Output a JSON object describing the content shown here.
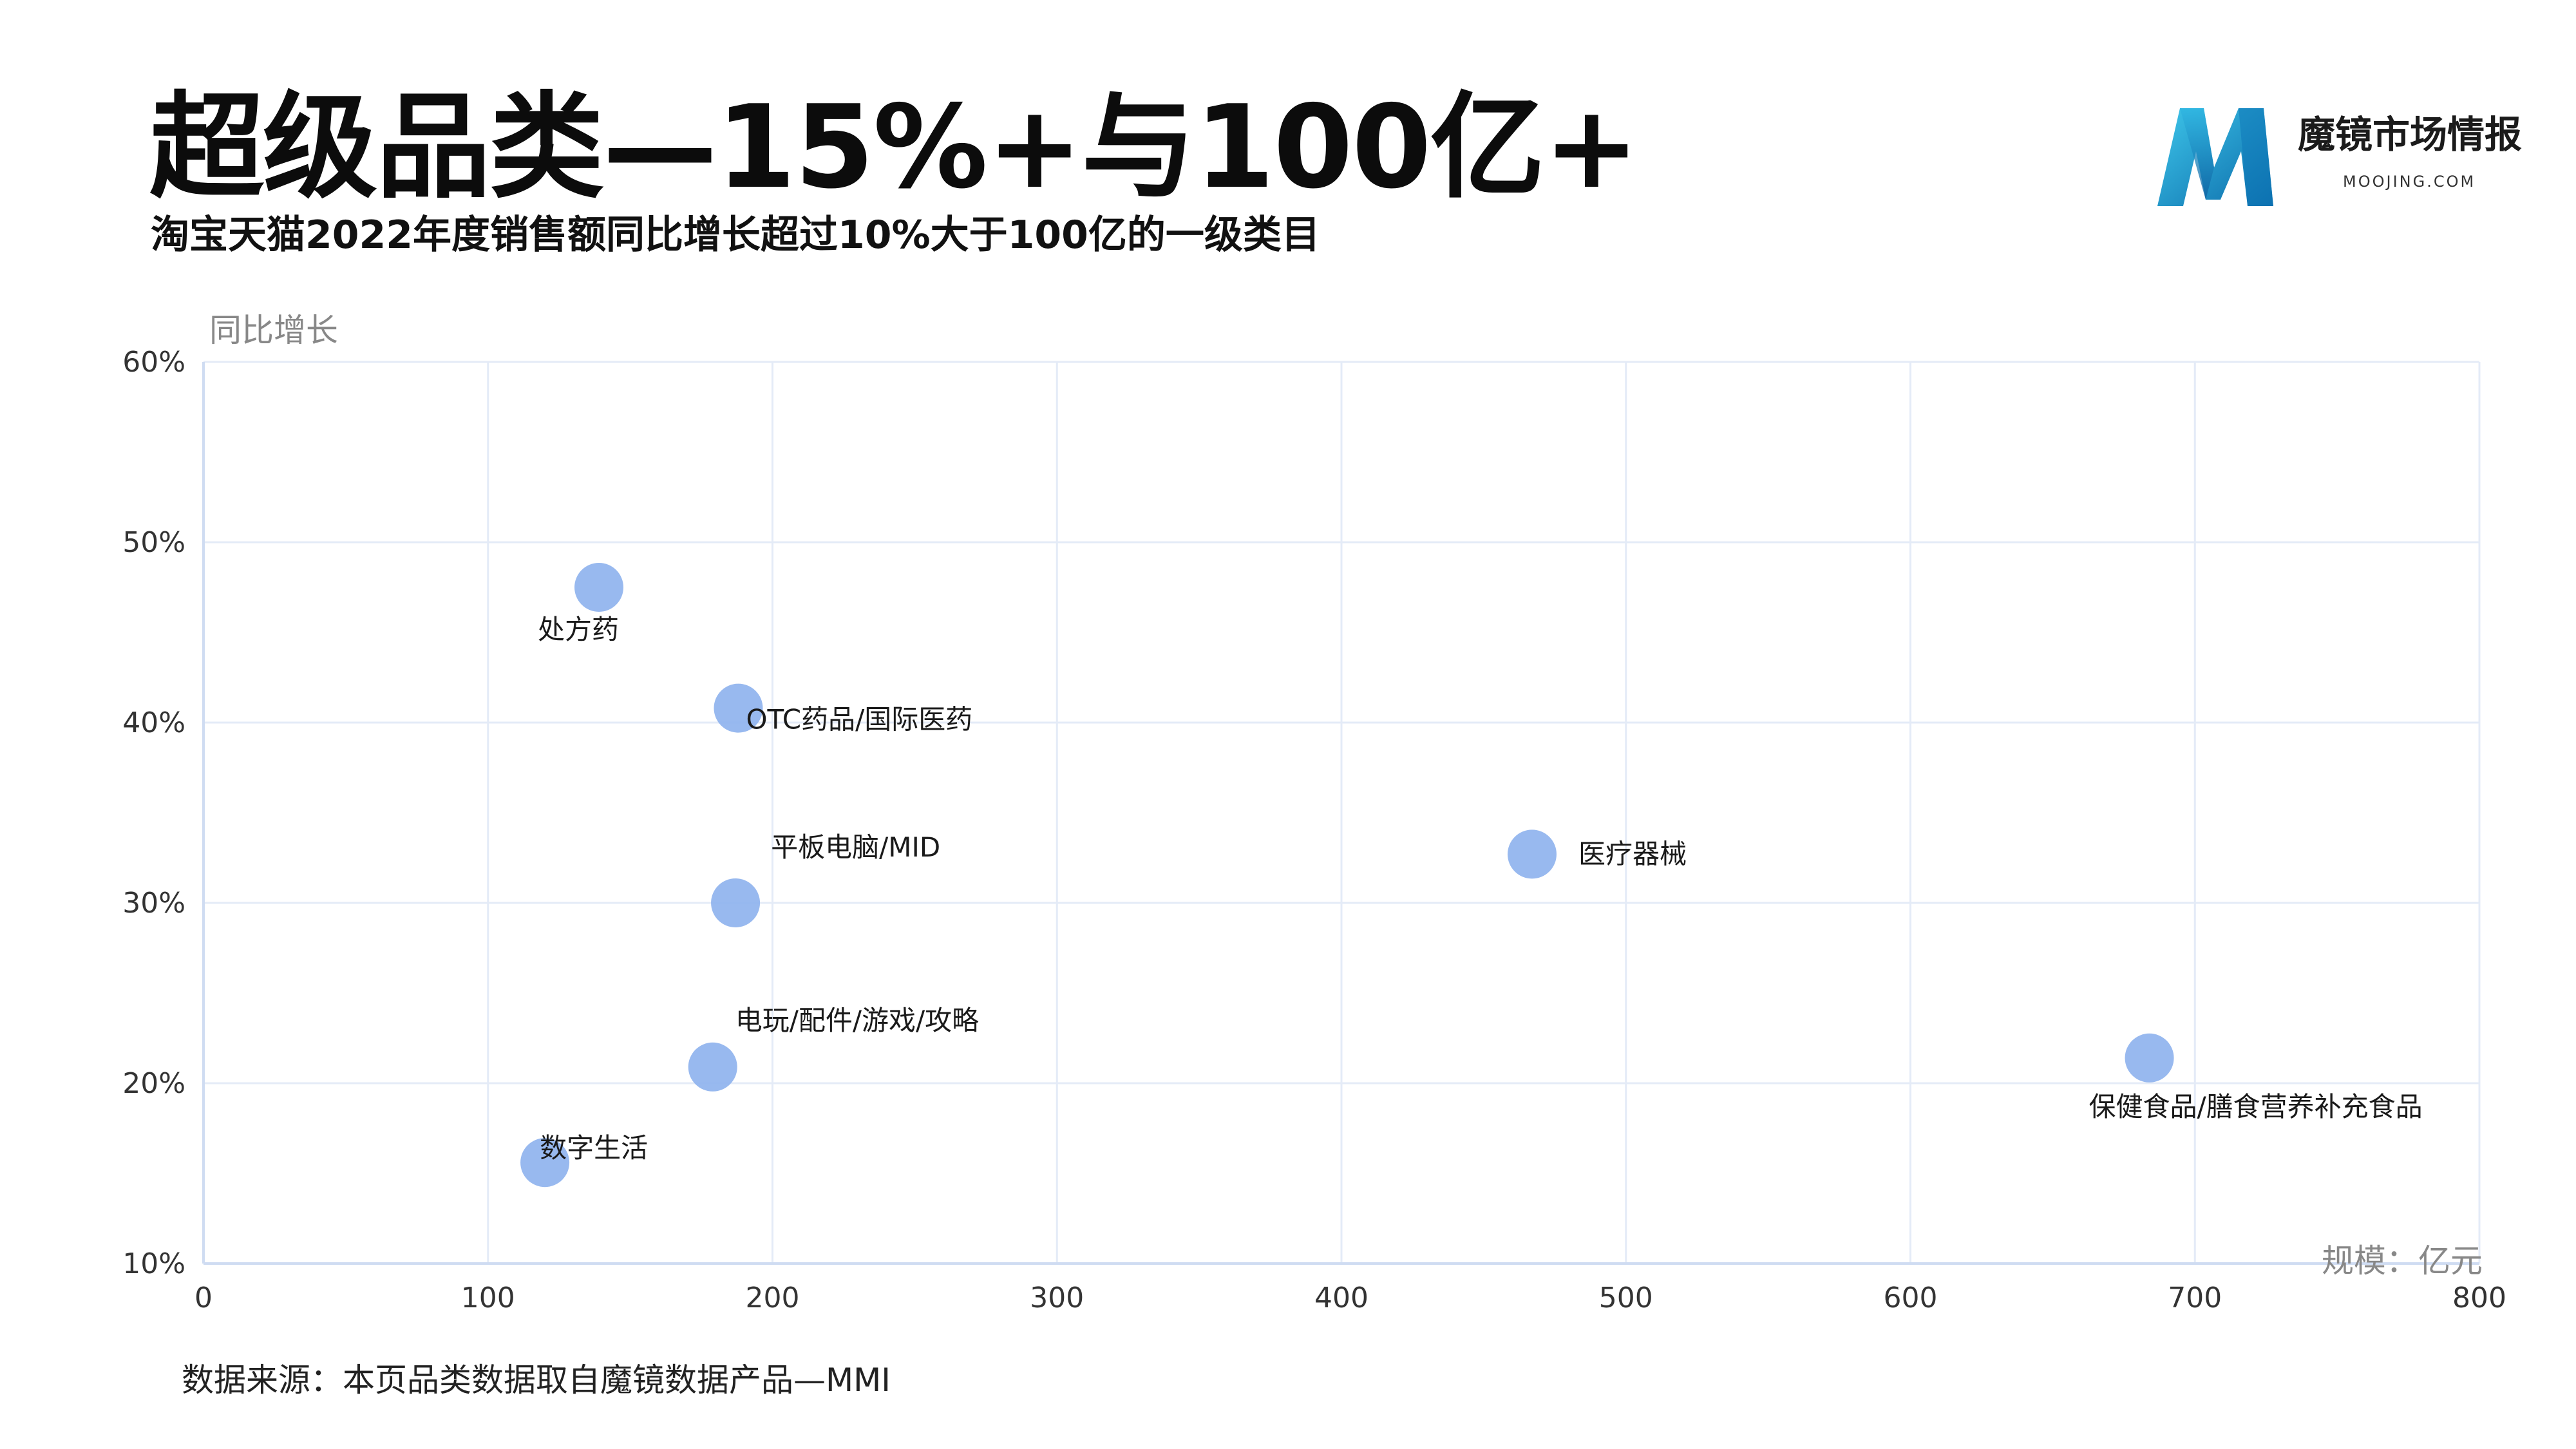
{
  "header": {
    "title": "超级品类—15%+与100亿+",
    "subtitle": "淘宝天猫2022年度销售额同比增长超过10%大于100亿的一级类目"
  },
  "logo": {
    "name": "魔镜市场情报",
    "domain": "MOOJING.COM",
    "colors": [
      "#1aa3d6",
      "#0d6fb3",
      "#37c3e6"
    ]
  },
  "footer": {
    "source": "数据来源：本页品类数据取自魔镜数据产品—MMI"
  },
  "colors": {
    "bubble": "#8fb3ee",
    "grid": "#e4ebf7",
    "axis_text": "#333333",
    "axis_title": "#888888"
  },
  "chart_data": {
    "type": "scatter",
    "xlabel": "规模：亿元",
    "ylabel": "同比增长",
    "xlim": [
      0,
      800
    ],
    "ylim": [
      0.1,
      0.6
    ],
    "x_ticks": [
      "0",
      "100",
      "200",
      "300",
      "400",
      "500",
      "600",
      "700",
      "800"
    ],
    "y_ticks": [
      "10%",
      "20%",
      "30%",
      "40%",
      "50%",
      "60%"
    ],
    "grid": true,
    "points": [
      {
        "label": "处方药",
        "x": 139,
        "y": 0.475
      },
      {
        "label": "OTC药品/国际医药",
        "x": 188,
        "y": 0.408
      },
      {
        "label": "平板电脑/MID",
        "x": 187,
        "y": 0.3
      },
      {
        "label": "医疗器械",
        "x": 467,
        "y": 0.327
      },
      {
        "label": "电玩/配件/游戏/攻略",
        "x": 179,
        "y": 0.209
      },
      {
        "label": "数字生活",
        "x": 120,
        "y": 0.156
      },
      {
        "label": "保健食品/膳食营养补充食品",
        "x": 684,
        "y": 0.214
      }
    ]
  }
}
